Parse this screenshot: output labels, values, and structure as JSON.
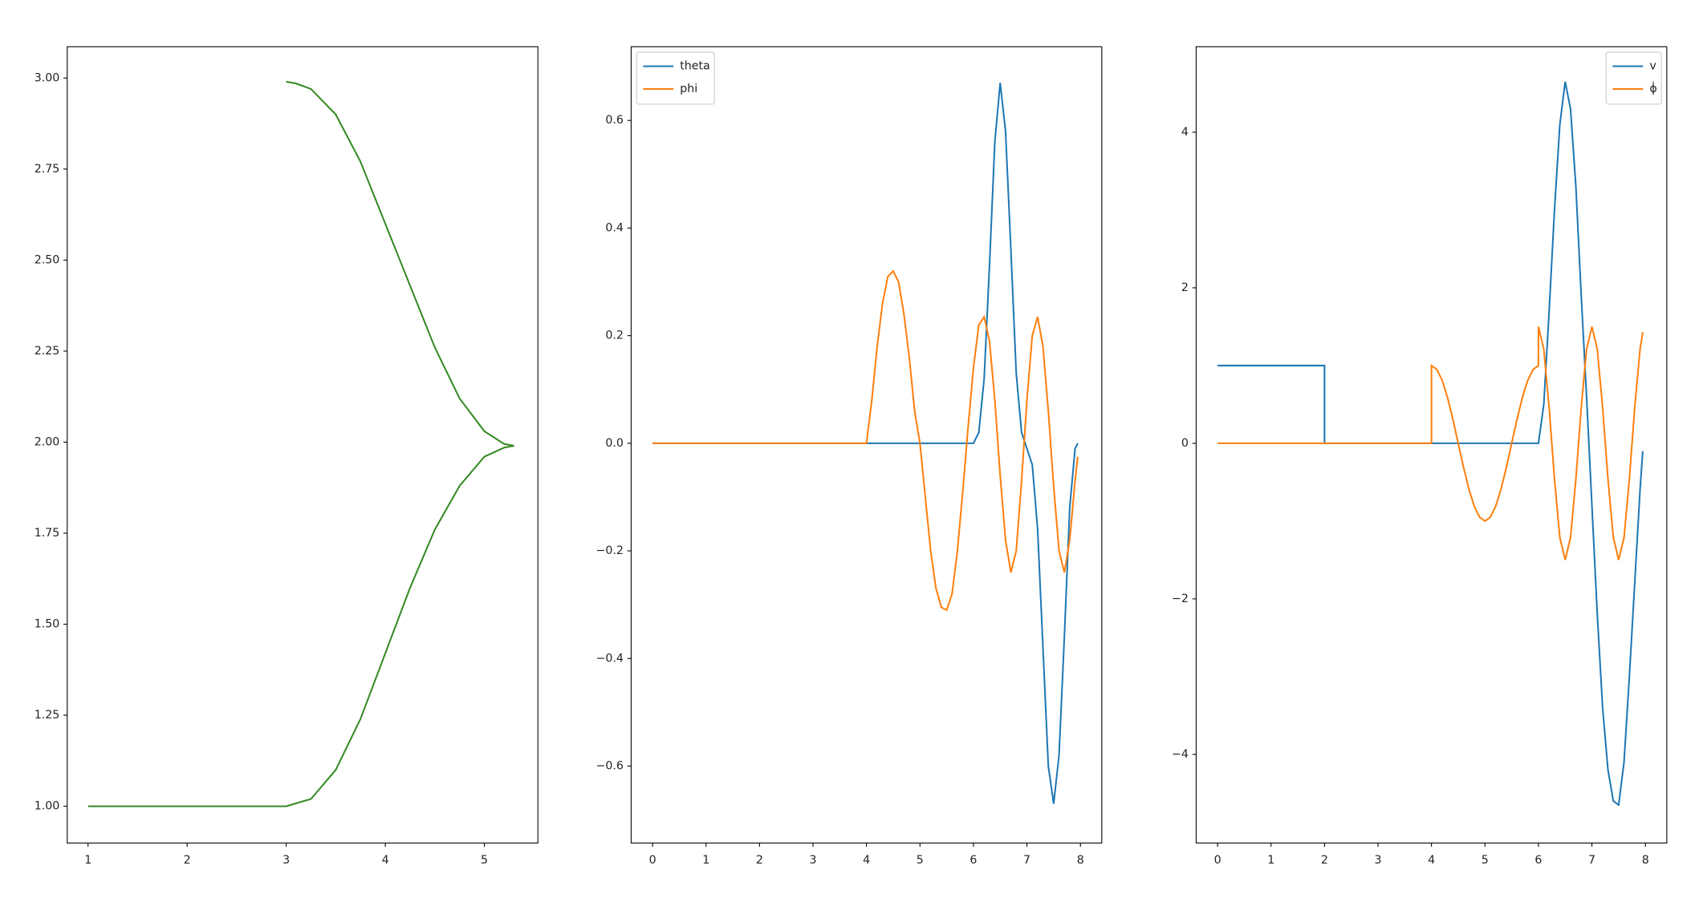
{
  "chart_data": [
    {
      "type": "line",
      "xlim": [
        0.79,
        5.54
      ],
      "ylim": [
        0.899,
        3.086
      ],
      "xticks": [
        1,
        2,
        3,
        4,
        5
      ],
      "yticks": [
        {
          "value": 1,
          "label": "1.00"
        },
        {
          "value": 1.25,
          "label": "1.25"
        },
        {
          "value": 1.5,
          "label": "1.50"
        },
        {
          "value": 1.75,
          "label": "1.75"
        },
        {
          "value": 2,
          "label": "2.00"
        },
        {
          "value": 2.25,
          "label": "2.25"
        },
        {
          "value": 2.5,
          "label": "2.50"
        },
        {
          "value": 2.75,
          "label": "2.75"
        },
        {
          "value": 3,
          "label": "3.00"
        }
      ],
      "series": [
        {
          "color": "#338a22",
          "x": [
            1,
            2,
            3,
            3.25,
            3.5,
            3.75,
            4,
            4.25,
            4.5,
            4.75,
            5,
            5.2,
            5.3,
            5.2,
            5,
            4.75,
            4.5,
            4.25,
            4,
            3.75,
            3.5,
            3.25,
            3.1,
            3
          ],
          "values": [
            1,
            1,
            1,
            1.02,
            1.1,
            1.24,
            1.42,
            1.6,
            1.76,
            1.88,
            1.96,
            1.985,
            1.99,
            1.995,
            2.03,
            2.12,
            2.26,
            2.43,
            2.6,
            2.77,
            2.9,
            2.97,
            2.985,
            2.99
          ]
        }
      ]
    },
    {
      "type": "line",
      "xlim": [
        -0.4,
        8.4
      ],
      "ylim": [
        -0.743,
        0.737
      ],
      "legend": "upper left",
      "xticks": [
        0,
        1,
        2,
        3,
        4,
        5,
        6,
        7,
        8
      ],
      "yticks": [
        {
          "value": -0.6,
          "label": "−0.6"
        },
        {
          "value": -0.4,
          "label": "−0.4"
        },
        {
          "value": -0.2,
          "label": "−0.2"
        },
        {
          "value": 0,
          "label": "0.0"
        },
        0.2,
        0.4,
        0.6
      ],
      "series": [
        {
          "name": "theta",
          "color": "#1f77b4",
          "x": [
            0,
            6,
            6.1,
            6.2,
            6.3,
            6.4,
            6.5,
            6.6,
            6.7,
            6.8,
            6.9,
            7.0,
            7.1,
            7.2,
            7.3,
            7.4,
            7.5,
            7.6,
            7.7,
            7.8,
            7.9,
            7.95
          ],
          "values": [
            0,
            0,
            0.02,
            0.12,
            0.33,
            0.56,
            0.67,
            0.58,
            0.36,
            0.13,
            0.02,
            -0.01,
            -0.04,
            -0.16,
            -0.38,
            -0.6,
            -0.67,
            -0.58,
            -0.36,
            -0.12,
            -0.01,
            0
          ]
        },
        {
          "name": "phi",
          "color": "#ff7f0e",
          "x": [
            0,
            4,
            4.1,
            4.2,
            4.3,
            4.4,
            4.5,
            4.6,
            4.7,
            4.8,
            4.9,
            5.0,
            5.1,
            5.2,
            5.3,
            5.4,
            5.5,
            5.6,
            5.7,
            5.8,
            5.9,
            6.0,
            6.1,
            6.2,
            6.3,
            6.4,
            6.5,
            6.6,
            6.7,
            6.8,
            6.9,
            7.0,
            7.1,
            7.2,
            7.3,
            7.4,
            7.5,
            7.6,
            7.7,
            7.8,
            7.9,
            7.95
          ],
          "values": [
            0,
            0,
            0.08,
            0.18,
            0.26,
            0.31,
            0.32,
            0.3,
            0.24,
            0.16,
            0.06,
            0,
            -0.1,
            -0.2,
            -0.27,
            -0.305,
            -0.31,
            -0.28,
            -0.2,
            -0.09,
            0.03,
            0.14,
            0.22,
            0.235,
            0.19,
            0.08,
            -0.06,
            -0.18,
            -0.24,
            -0.2,
            -0.07,
            0.08,
            0.2,
            0.235,
            0.18,
            0.06,
            -0.08,
            -0.2,
            -0.24,
            -0.18,
            -0.07,
            -0.025
          ]
        }
      ]
    },
    {
      "type": "line",
      "xlim": [
        -0.4,
        8.4
      ],
      "ylim": [
        -5.14,
        5.1
      ],
      "legend": "upper right",
      "xticks": [
        0,
        1,
        2,
        3,
        4,
        5,
        6,
        7,
        8
      ],
      "yticks": [
        {
          "value": -4,
          "label": "−4"
        },
        {
          "value": -2,
          "label": "−2"
        },
        0,
        2,
        4
      ],
      "series": [
        {
          "name": "v",
          "color": "#1f77b4",
          "x": [
            0,
            2,
            2,
            6,
            6.1,
            6.2,
            6.3,
            6.4,
            6.5,
            6.6,
            6.7,
            6.8,
            6.9,
            7.0,
            7.1,
            7.2,
            7.3,
            7.4,
            7.5,
            7.6,
            7.7,
            7.8,
            7.9,
            7.95
          ],
          "values": [
            1,
            1,
            0,
            0,
            0.5,
            1.7,
            3.0,
            4.1,
            4.65,
            4.3,
            3.3,
            1.9,
            0.6,
            -0.8,
            -2.2,
            -3.4,
            -4.2,
            -4.6,
            -4.65,
            -4.1,
            -3.0,
            -1.8,
            -0.6,
            -0.1
          ]
        },
        {
          "name": "ϕ̇",
          "color": "#ff7f0e",
          "x": [
            0,
            4,
            4,
            4.1,
            4.2,
            4.3,
            4.4,
            4.5,
            4.6,
            4.7,
            4.8,
            4.9,
            5.0,
            5.1,
            5.2,
            5.3,
            5.4,
            5.5,
            5.6,
            5.7,
            5.8,
            5.9,
            6.0,
            6.0,
            6.1,
            6.2,
            6.3,
            6.4,
            6.5,
            6.6,
            6.7,
            6.8,
            6.9,
            7.0,
            7.1,
            7.2,
            7.3,
            7.4,
            7.5,
            7.6,
            7.7,
            7.8,
            7.9,
            7.95
          ],
          "values": [
            0,
            0,
            1,
            0.95,
            0.81,
            0.59,
            0.31,
            0,
            -0.31,
            -0.59,
            -0.81,
            -0.95,
            -1,
            -0.95,
            -0.81,
            -0.59,
            -0.31,
            0,
            0.31,
            0.59,
            0.81,
            0.95,
            1,
            1.5,
            1.21,
            0.46,
            -0.46,
            -1.21,
            -1.5,
            -1.21,
            -0.46,
            0.46,
            1.21,
            1.5,
            1.21,
            0.46,
            -0.46,
            -1.21,
            -1.5,
            -1.21,
            -0.46,
            0.46,
            1.21,
            1.43
          ]
        }
      ]
    }
  ]
}
